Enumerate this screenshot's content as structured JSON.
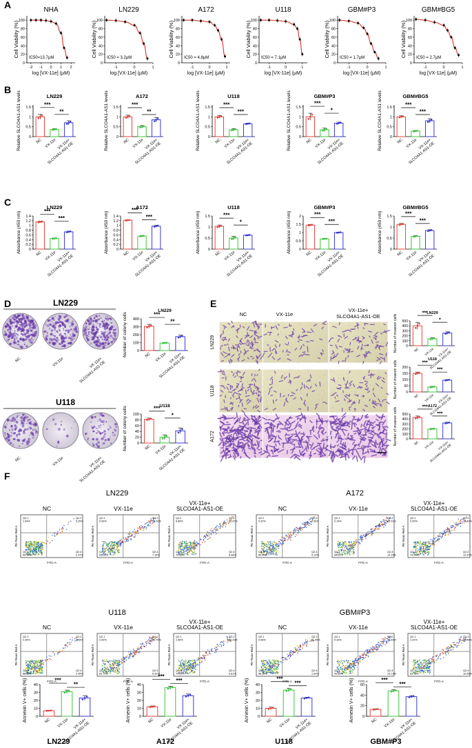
{
  "panel_labels": {
    "A": "A",
    "B": "B",
    "C": "C",
    "D": "D",
    "E": "E",
    "F": "F"
  },
  "colors": {
    "nc": "#e8423a",
    "vx": "#3cc43c",
    "oe": "#3a3ad8",
    "curve": "#e0302a",
    "stain": "#6a3aa8",
    "ink": "#000000"
  },
  "shared": {
    "nc": "NC",
    "vx": "VX-11e",
    "oe_a": "VX-11e+",
    "oe_b": "SLCO4A1-AS1-OE",
    "oe_full": "VX-11e+ SLCO4A1-AS1-OE",
    "cell_viability": "Cell Viability (%)",
    "log_dose": "log [VX-11e] (μM)",
    "rel_slco": "Relative SLCO4A1-AS1 levels",
    "absorbance": "Absorbance (450 nm)",
    "colony": "Number of colony cells",
    "invasion": "Number of invasion cells",
    "annexin": "Annexin V+ cells (%)"
  },
  "chart_data": [
    {
      "panel": "A",
      "type": "line",
      "title": "NHA",
      "ic50": "IC50=13.7μM",
      "xlabel": "log [VX-11e] (μM)",
      "ylabel": "Cell Viability (%)",
      "xticks": [
        -2,
        -1,
        0,
        1,
        2
      ],
      "yticks": [
        0,
        20,
        40,
        60,
        80,
        100
      ],
      "xlim": [
        -2.4,
        2.4
      ],
      "ylim": [
        0,
        110
      ],
      "x": [
        -2,
        -1.5,
        -1,
        -0.5,
        0,
        0.5,
        1,
        1.3,
        1.6
      ],
      "y": [
        100,
        100,
        100,
        99,
        97,
        92,
        70,
        35,
        12
      ]
    },
    {
      "panel": "A",
      "type": "line",
      "title": "LN229",
      "ic50": "IC50 = 3.2μM",
      "xlabel": "log [VX-11e] (μM)",
      "ylabel": "Cell Viability (%)",
      "xticks": [
        -1,
        0,
        1
      ],
      "yticks": [
        0,
        20,
        40,
        60,
        80,
        100
      ],
      "xlim": [
        -1.6,
        1.0
      ],
      "ylim": [
        0,
        110
      ],
      "x": [
        -1.5,
        -1,
        -0.5,
        0,
        0.3,
        0.5,
        0.7
      ],
      "y": [
        100,
        99,
        96,
        88,
        70,
        45,
        10
      ]
    },
    {
      "panel": "A",
      "type": "line",
      "title": "A172",
      "ic50": "IC50 = 4.8μM",
      "xlabel": "log [VX-11e] (μM)",
      "ylabel": "Cell Viability (%)",
      "xticks": [
        -1,
        0,
        1
      ],
      "yticks": [
        0,
        20,
        40,
        60,
        80,
        100
      ],
      "xlim": [
        -1.6,
        1.2
      ],
      "ylim": [
        0,
        110
      ],
      "x": [
        -1.5,
        -1,
        -0.5,
        0,
        0.3,
        0.5,
        0.7,
        0.9
      ],
      "y": [
        100,
        100,
        98,
        96,
        88,
        76,
        55,
        15
      ]
    },
    {
      "panel": "A",
      "type": "line",
      "title": "U118",
      "ic50": "IC50 = 7.1μM",
      "xlabel": "log [VX-11e] (μM)",
      "ylabel": "Cell Viability (%)",
      "xticks": [
        -1,
        0,
        1
      ],
      "yticks": [
        0,
        20,
        40,
        60,
        80,
        100
      ],
      "xlim": [
        -1.6,
        1.3
      ],
      "ylim": [
        0,
        110
      ],
      "x": [
        -1.5,
        -1,
        -0.5,
        0,
        0.5,
        0.7,
        0.85,
        1.0
      ],
      "y": [
        100,
        100,
        99,
        97,
        90,
        80,
        55,
        20
      ]
    },
    {
      "panel": "A",
      "type": "line",
      "title": "GBM#P3",
      "ic50": "IC50 = 1.7μM",
      "xlabel": "log [VX-11e] (μM)",
      "ylabel": "Cell Viability (%)",
      "xticks": [
        -1,
        0,
        1
      ],
      "yticks": [
        0,
        20,
        40,
        60,
        80,
        100
      ],
      "xlim": [
        -1.6,
        1.0
      ],
      "ylim": [
        0,
        110
      ],
      "x": [
        -1.5,
        -1,
        -0.5,
        -0.2,
        0,
        0.2,
        0.4,
        0.6
      ],
      "y": [
        100,
        98,
        93,
        82,
        68,
        45,
        25,
        10
      ]
    },
    {
      "panel": "A",
      "type": "line",
      "title": "GBM#BG5",
      "ic50": "IC50 = 2.7μM",
      "xlabel": "log [VX-11e] (μM)",
      "ylabel": "Cell Viability (%)",
      "xticks": [
        -1,
        0,
        1
      ],
      "yticks": [
        0,
        20,
        40,
        60,
        80,
        100
      ],
      "xlim": [
        -1.6,
        1.0
      ],
      "ylim": [
        0,
        110
      ],
      "x": [
        -1.5,
        -1,
        -0.5,
        0,
        0.2,
        0.4,
        0.6,
        0.8
      ],
      "y": [
        102,
        100,
        95,
        88,
        76,
        60,
        35,
        18
      ]
    },
    {
      "panel": "B",
      "type": "bar",
      "title": "LN229",
      "ylabel": "Relative SLCO4A1-AS1 levels",
      "yticks": [
        0,
        0.5,
        1.0,
        1.5
      ],
      "ylim": [
        0,
        1.6
      ],
      "categories": [
        "NC",
        "VX-11e",
        "VX-11e+ SLCO4A1-AS1-OE"
      ],
      "values": [
        1.0,
        0.36,
        0.7
      ],
      "errors": [
        0.12,
        0.04,
        0.1
      ],
      "sig": [
        "***",
        "**"
      ]
    },
    {
      "panel": "B",
      "type": "bar",
      "title": "A172",
      "ylabel": "Relative SLCO4A1-AS1 levels",
      "yticks": [
        0,
        0.5,
        1.0,
        1.5
      ],
      "ylim": [
        0,
        1.6
      ],
      "categories": [
        "NC",
        "VX-11e",
        "VX-11e+ SLCO4A1-AS1-OE"
      ],
      "values": [
        1.0,
        0.5,
        0.85
      ],
      "errors": [
        0.08,
        0.06,
        0.12
      ],
      "sig": [
        "***",
        "**"
      ]
    },
    {
      "panel": "B",
      "type": "bar",
      "title": "U118",
      "ylabel": "Relative SLCO4A1-AS1 levels",
      "yticks": [
        0,
        0.5,
        1.0,
        1.5
      ],
      "ylim": [
        0,
        1.6
      ],
      "categories": [
        "NC",
        "VX-11e",
        "VX-11e+ SLCO4A1-AS1-OE"
      ],
      "values": [
        1.0,
        0.35,
        0.65
      ],
      "errors": [
        0.07,
        0.06,
        0.03
      ],
      "sig": [
        "***",
        "***"
      ]
    },
    {
      "panel": "B",
      "type": "bar",
      "title": "GBM#P3",
      "ylabel": "Relative SLCO4A1-AS1 levels",
      "yticks": [
        0,
        0.5,
        1.0,
        1.5
      ],
      "ylim": [
        0,
        1.6
      ],
      "categories": [
        "NC",
        "VX-11e",
        "VX-11e+ SLCO4A1-AS1-OE"
      ],
      "values": [
        1.0,
        0.35,
        0.68
      ],
      "errors": [
        0.18,
        0.08,
        0.05
      ],
      "sig": [
        "***",
        "*"
      ]
    },
    {
      "panel": "B",
      "type": "bar",
      "title": "GBM#BG5",
      "ylabel": "Relative SLCO4A1-AS1 levels",
      "yticks": [
        0,
        0.5,
        1.0,
        1.5
      ],
      "ylim": [
        0,
        1.6
      ],
      "categories": [
        "NC",
        "VX-11e",
        "VX-11e+ SLCO4A1-AS1-OE"
      ],
      "values": [
        1.0,
        0.28,
        0.8
      ],
      "errors": [
        0.05,
        0.03,
        0.1
      ],
      "sig": [
        "***",
        "***"
      ]
    },
    {
      "panel": "C",
      "type": "bar",
      "title": "LN229",
      "ylabel": "Absorbance (450 nm)",
      "yticks": [
        0,
        0.2,
        0.4,
        0.6,
        0.8,
        1.0,
        1.2,
        1.4
      ],
      "ylim": [
        0,
        1.4
      ],
      "categories": [
        "NC",
        "VX-11e",
        "VX-11e+ SLCO4A1-AS1-OE"
      ],
      "values": [
        1.15,
        0.45,
        0.73
      ],
      "errors": [
        0.03,
        0.02,
        0.03
      ],
      "sig": [
        "***",
        "***"
      ]
    },
    {
      "panel": "C",
      "type": "bar",
      "title": "A172",
      "ylabel": "Absorbance (450 nm)",
      "yticks": [
        0,
        0.2,
        0.4,
        0.6,
        0.8,
        1.0,
        1.2,
        1.4
      ],
      "ylim": [
        0,
        1.4
      ],
      "categories": [
        "NC",
        "VX-11e",
        "VX-11e+ SLCO4A1-AS1-OE"
      ],
      "values": [
        1.22,
        0.55,
        0.97
      ],
      "errors": [
        0.02,
        0.02,
        0.04
      ],
      "sig": [
        "***",
        "***"
      ]
    },
    {
      "panel": "C",
      "type": "bar",
      "title": "U118",
      "ylabel": "Absorbance (450 nm)",
      "yticks": [
        0,
        0.5,
        1.0,
        1.5
      ],
      "ylim": [
        0,
        1.5
      ],
      "categories": [
        "NC",
        "VX-11e",
        "VX-11e+ SLCO4A1-AS1-OE"
      ],
      "values": [
        1.03,
        0.5,
        0.63
      ],
      "errors": [
        0.06,
        0.08,
        0.02
      ],
      "sig": [
        "***",
        "*"
      ]
    },
    {
      "panel": "C",
      "type": "bar",
      "title": "GBM#P3",
      "ylabel": "Absorbance (450 nm)",
      "yticks": [
        0,
        0.5,
        1.0,
        1.5,
        2.0
      ],
      "ylim": [
        0,
        2.0
      ],
      "categories": [
        "NC",
        "VX-11e",
        "VX-11e+ SLCO4A1-AS1-OE"
      ],
      "values": [
        1.45,
        0.62,
        1.0
      ],
      "errors": [
        0.04,
        0.02,
        0.03
      ],
      "sig": [
        "***",
        "***"
      ]
    },
    {
      "panel": "C",
      "type": "bar",
      "title": "GBM#BG5",
      "ylabel": "Absorbance (450 nm)",
      "yticks": [
        0,
        0.5,
        1.0,
        1.5
      ],
      "ylim": [
        0,
        1.5
      ],
      "categories": [
        "NC",
        "VX-11e",
        "VX-11e+ SLCO4A1-AS1-OE"
      ],
      "values": [
        1.12,
        0.58,
        0.84
      ],
      "errors": [
        0.04,
        0.03,
        0.04
      ],
      "sig": [
        "***",
        "***"
      ]
    },
    {
      "panel": "D",
      "type": "bar",
      "title": "LN229",
      "ylabel": "Number of colony cells",
      "yticks": [
        0,
        100,
        200,
        300,
        400
      ],
      "ylim": [
        0,
        400
      ],
      "categories": [
        "NC",
        "VX-11e",
        "VX-11e+ SLCO4A1-AS1-OE"
      ],
      "values": [
        305,
        95,
        175
      ],
      "errors": [
        25,
        5,
        20
      ],
      "sig": [
        "***",
        "**"
      ]
    },
    {
      "panel": "D",
      "type": "bar",
      "title": "U118",
      "ylabel": "Number of colony cells",
      "yticks": [
        0,
        20,
        40,
        60,
        80,
        100
      ],
      "ylim": [
        0,
        100
      ],
      "categories": [
        "NC",
        "VX-11e",
        "VX-11e+ SLCO4A1-AS1-OE"
      ],
      "values": [
        82,
        20,
        42
      ],
      "errors": [
        4,
        8,
        10
      ],
      "sig": [
        "***",
        "*"
      ]
    },
    {
      "panel": "E",
      "type": "bar",
      "title": "LN229",
      "ylabel": "Number of invasion cells",
      "yticks": [
        0,
        100,
        200,
        300,
        400,
        500
      ],
      "ylim": [
        0,
        500
      ],
      "categories": [
        "NC",
        "VX-11e",
        "VX-11e+ SLCO4A1-AS1-OE"
      ],
      "values": [
        400,
        140,
        255
      ],
      "errors": [
        70,
        20,
        25
      ],
      "sig": [
        "***",
        "*"
      ]
    },
    {
      "panel": "E",
      "type": "bar",
      "title": "U118",
      "ylabel": "Number of invasion cells",
      "yticks": [
        0,
        50,
        100,
        150,
        200
      ],
      "ylim": [
        0,
        200
      ],
      "categories": [
        "NC",
        "VX-11e",
        "VX-11e+ SLCO4A1-AS1-OE"
      ],
      "values": [
        150,
        40,
        95
      ],
      "errors": [
        10,
        5,
        5
      ],
      "sig": [
        "***",
        "***"
      ]
    },
    {
      "panel": "E",
      "type": "bar",
      "title": "A172",
      "ylabel": "Number of invasion cells",
      "yticks": [
        0,
        100,
        200,
        300,
        400,
        500
      ],
      "ylim": [
        0,
        500
      ],
      "categories": [
        "NC",
        "VX-11e",
        "VX-11e+ SLCO4A1-AS1-OE"
      ],
      "values": [
        430,
        200,
        320
      ],
      "errors": [
        30,
        10,
        15
      ],
      "sig": [
        "***",
        "***"
      ]
    },
    {
      "panel": "F",
      "type": "bar",
      "title": "LN229",
      "ylabel": "Annexin V+ cells (%)",
      "yticks": [
        0,
        10,
        20,
        30,
        40
      ],
      "ylim": [
        0,
        40
      ],
      "categories": [
        "NC",
        "VX-11e",
        "VX-11e+ SLCO4A1-AS1-OE"
      ],
      "values": [
        7,
        31,
        23
      ],
      "errors": [
        0.5,
        2,
        3
      ],
      "sig": [
        "***",
        "**"
      ]
    },
    {
      "panel": "F",
      "type": "bar",
      "title": "A172",
      "ylabel": "Annexin V+ cells (%)",
      "yticks": [
        0,
        10,
        20,
        30,
        40
      ],
      "ylim": [
        0,
        40
      ],
      "categories": [
        "NC",
        "VX-11e",
        "VX-11e+ SLCO4A1-AS1-OE"
      ],
      "values": [
        12,
        36,
        26
      ],
      "errors": [
        1,
        2,
        2
      ],
      "sig": [
        "***",
        "***"
      ]
    },
    {
      "panel": "F",
      "type": "bar",
      "title": "U118",
      "ylabel": "Annexin V+ cells (%)",
      "yticks": [
        0,
        10,
        20,
        30,
        40
      ],
      "ylim": [
        0,
        40
      ],
      "categories": [
        "NC",
        "VX-11e",
        "VX-11e+ SLCO4A1-AS1-OE"
      ],
      "values": [
        10,
        33,
        23
      ],
      "errors": [
        1.5,
        2,
        1
      ],
      "sig": [
        "***",
        "***"
      ]
    },
    {
      "panel": "F",
      "type": "bar",
      "title": "GBM#P3",
      "ylabel": "Annexin V+ cells (%)",
      "yticks": [
        0,
        20,
        40,
        60
      ],
      "ylim": [
        0,
        60
      ],
      "categories": [
        "NC",
        "VX-11e",
        "VX-11e+ SLCO4A1-AS1-OE"
      ],
      "values": [
        13,
        48,
        37
      ],
      "errors": [
        1,
        2,
        2
      ],
      "sig": [
        "***",
        "***"
      ]
    }
  ],
  "panel_d": {
    "rows": [
      {
        "title": "LN229",
        "dish_density": 0.9
      },
      {
        "title": "U118",
        "dish_density": 0.45
      }
    ],
    "dish_labels": [
      "NC",
      "VX-11e",
      "VX-11e+ SLCO4A1-AS1-OE"
    ]
  },
  "panel_e": {
    "columns": [
      "NC",
      "VX-11e",
      "VX-11e+ SLCO4A1-AS1-OE"
    ],
    "rows": [
      "LN229",
      "U118",
      "A172"
    ]
  },
  "panel_f": {
    "axis_x": "FITC-A",
    "axis_y": "PE-Texas Red-A",
    "groups": [
      {
        "title": "LN229",
        "columns": [
          "NC",
          "VX-11e",
          "VX-11e+ SLCO4A1-AS1-OE"
        ],
        "plots": [
          {
            "q1": "Q2-1",
            "q1v": "1.94%",
            "q2": "Q2-2",
            "q2v": "5.25%",
            "q3": "Q2-3",
            "q3v": "90.34%",
            "q4": "Q2-4",
            "q4v": "2.47%"
          },
          {
            "q1": "Q2-1",
            "q1v": "5.06%",
            "q2": "Q2-2",
            "q2v": "24.32%",
            "q3": "Q2-3",
            "q3v": "63.02%",
            "q4": "Q2-4",
            "q4v": "7.16%"
          },
          {
            "q1": "Q2-1",
            "q1v": "6.86%",
            "q2": "Q2-2",
            "q2v": "16.67%",
            "q3": "Q2-3",
            "q3v": "70.32%",
            "q4": "Q2-4",
            "q4v": "6.08%"
          }
        ]
      },
      {
        "title": "A172",
        "columns": [
          "NC",
          "VX-11e",
          "VX-11e+ SLCO4A1-AS1-OE"
        ],
        "plots": [
          {
            "q1": "Q2-1",
            "q1v": "0.92%",
            "q2": "Q2-2",
            "q2v": "7.96%",
            "q3": "Q2-3",
            "q3v": "85.99%",
            "q4": "Q2-4",
            "q4v": "5.13%"
          },
          {
            "q1": "Q2-1",
            "q1v": "0.14%",
            "q2": "Q2-2",
            "q2v": "16.01%",
            "q3": "Q2-3",
            "q3v": "69.61%",
            "q4": "Q2-4",
            "q4v": "14.14%"
          },
          {
            "q1": "Q2-1",
            "q1v": "0.09%",
            "q2": "Q2-2",
            "q2v": "13.49%",
            "q3": "Q2-3",
            "q3v": "74.06%",
            "q4": "Q2-4",
            "q4v": "12.37%"
          }
        ]
      },
      {
        "title": "U118",
        "columns": [
          "NC",
          "VX-11e",
          "VX-11e+ SLCO4A1-AS1-OE"
        ],
        "plots": [
          {
            "q1": "Q2-1",
            "q1v": "2.35%",
            "q2": "Q2-2",
            "q2v": "7.08%",
            "q3": "Q2-3",
            "q3v": "88.12%",
            "q4": "Q2-4",
            "q4v": "2.45%"
          },
          {
            "q1": "Q2-1",
            "q1v": "2.99%",
            "q2": "Q2-2",
            "q2v": "25.70%",
            "q3": "Q2-3",
            "q3v": "63.70%",
            "q4": "Q2-4",
            "q4v": "6.92%"
          },
          {
            "q1": "Q2-1",
            "q1v": "1.56%",
            "q2": "Q2-2",
            "q2v": "16.29%",
            "q3": "Q2-3",
            "q3v": "74.55%",
            "q4": "Q2-4",
            "q4v": "6.81%"
          }
        ]
      },
      {
        "title": "GBM#P3",
        "columns": [
          "NC",
          "VX-11e",
          "VX-11e+ SLCO4A1-AS1-OE"
        ],
        "plots": [
          {
            "q1": "Q2-1",
            "q1v": "0.98%",
            "q2": "Q2-2",
            "q2v": "11.40%",
            "q3": "Q2-3",
            "q3v": "86.22%",
            "q4": "Q2-4",
            "q4v": "1.90%"
          },
          {
            "q1": "Q2-1",
            "q1v": "0.33%",
            "q2": "Q2-2",
            "q2v": "33.69%",
            "q3": "Q2-3",
            "q3v": "49.85%",
            "q4": "Q2-4",
            "q4v": "15.13%"
          },
          {
            "q1": "Q2-1",
            "q1v": "1.22%",
            "q2": "Q2-2",
            "q2v": "25.46%",
            "q3": "Q2-3",
            "q3v": "62.13%",
            "q4": "Q2-4",
            "q4v": "10.65%"
          }
        ]
      }
    ]
  }
}
